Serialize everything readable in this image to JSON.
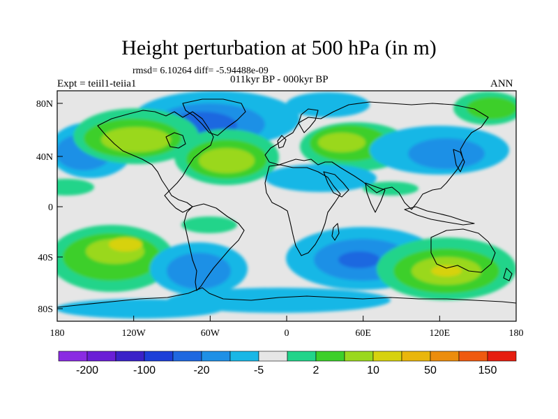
{
  "title": "Height perturbation at 500 hPa (in m)",
  "stats": "rmsd= 6.10264 diff= -5.94488e-09",
  "period": "011kyr BP - 000kyr BP",
  "experiment": "Expt = teiil1-teiia1",
  "season": "ANN",
  "axes": {
    "y_ticks": [
      "80N",
      "40N",
      "0",
      "40S",
      "80S"
    ],
    "x_ticks": [
      "180",
      "120W",
      "60W",
      "0",
      "60E",
      "120E",
      "180"
    ]
  },
  "colorbar": {
    "colors": [
      "#8a2be2",
      "#6a1fd6",
      "#3a22c8",
      "#1c3fd8",
      "#1f68e0",
      "#1f90e6",
      "#19b7e6",
      "#e6e6e6",
      "#22d48a",
      "#3dcf2a",
      "#9ad81e",
      "#d7d20e",
      "#e9b60c",
      "#ec8d0d",
      "#ef5a10",
      "#e61e10"
    ],
    "labels": [
      "-200",
      "-100",
      "-20",
      "-5",
      "2",
      "10",
      "50",
      "150"
    ]
  },
  "palette": {
    "neutral": "#e6e6e6",
    "lightblue": "#19b7e6",
    "blue": "#1f90e6",
    "deepblue": "#1f68e0",
    "darkblue": "#1c3fd8",
    "teal": "#22d48a",
    "green": "#3dcf2a",
    "lime": "#9ad81e",
    "yellow": "#d7d20e",
    "gold": "#e9b60c"
  }
}
